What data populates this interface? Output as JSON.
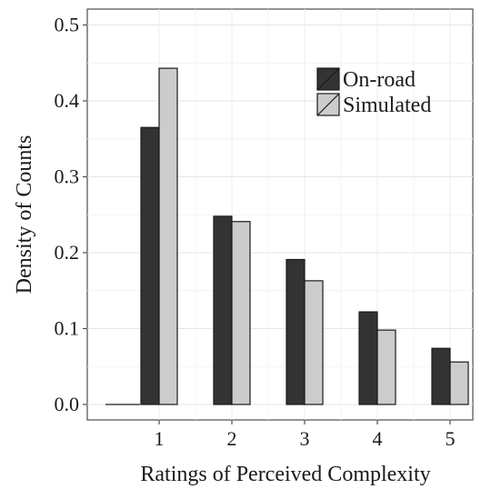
{
  "chart_data": {
    "type": "bar",
    "title": "",
    "xlabel": "Ratings of Perceived Complexity",
    "ylabel": "Density of Counts",
    "categories": [
      "1",
      "2",
      "3",
      "4",
      "5"
    ],
    "ylim": [
      0,
      0.5
    ],
    "yticks": [
      "0.0",
      "0.1",
      "0.2",
      "0.3",
      "0.4",
      "0.5"
    ],
    "grid": true,
    "legend_position": "top-right",
    "series": [
      {
        "name": "On-road",
        "values": [
          0.365,
          0.248,
          0.191,
          0.122,
          0.074
        ],
        "color": "#333333"
      },
      {
        "name": "Simulated",
        "values": [
          0.443,
          0.241,
          0.163,
          0.098,
          0.056
        ],
        "color": "#cccccc"
      }
    ]
  }
}
